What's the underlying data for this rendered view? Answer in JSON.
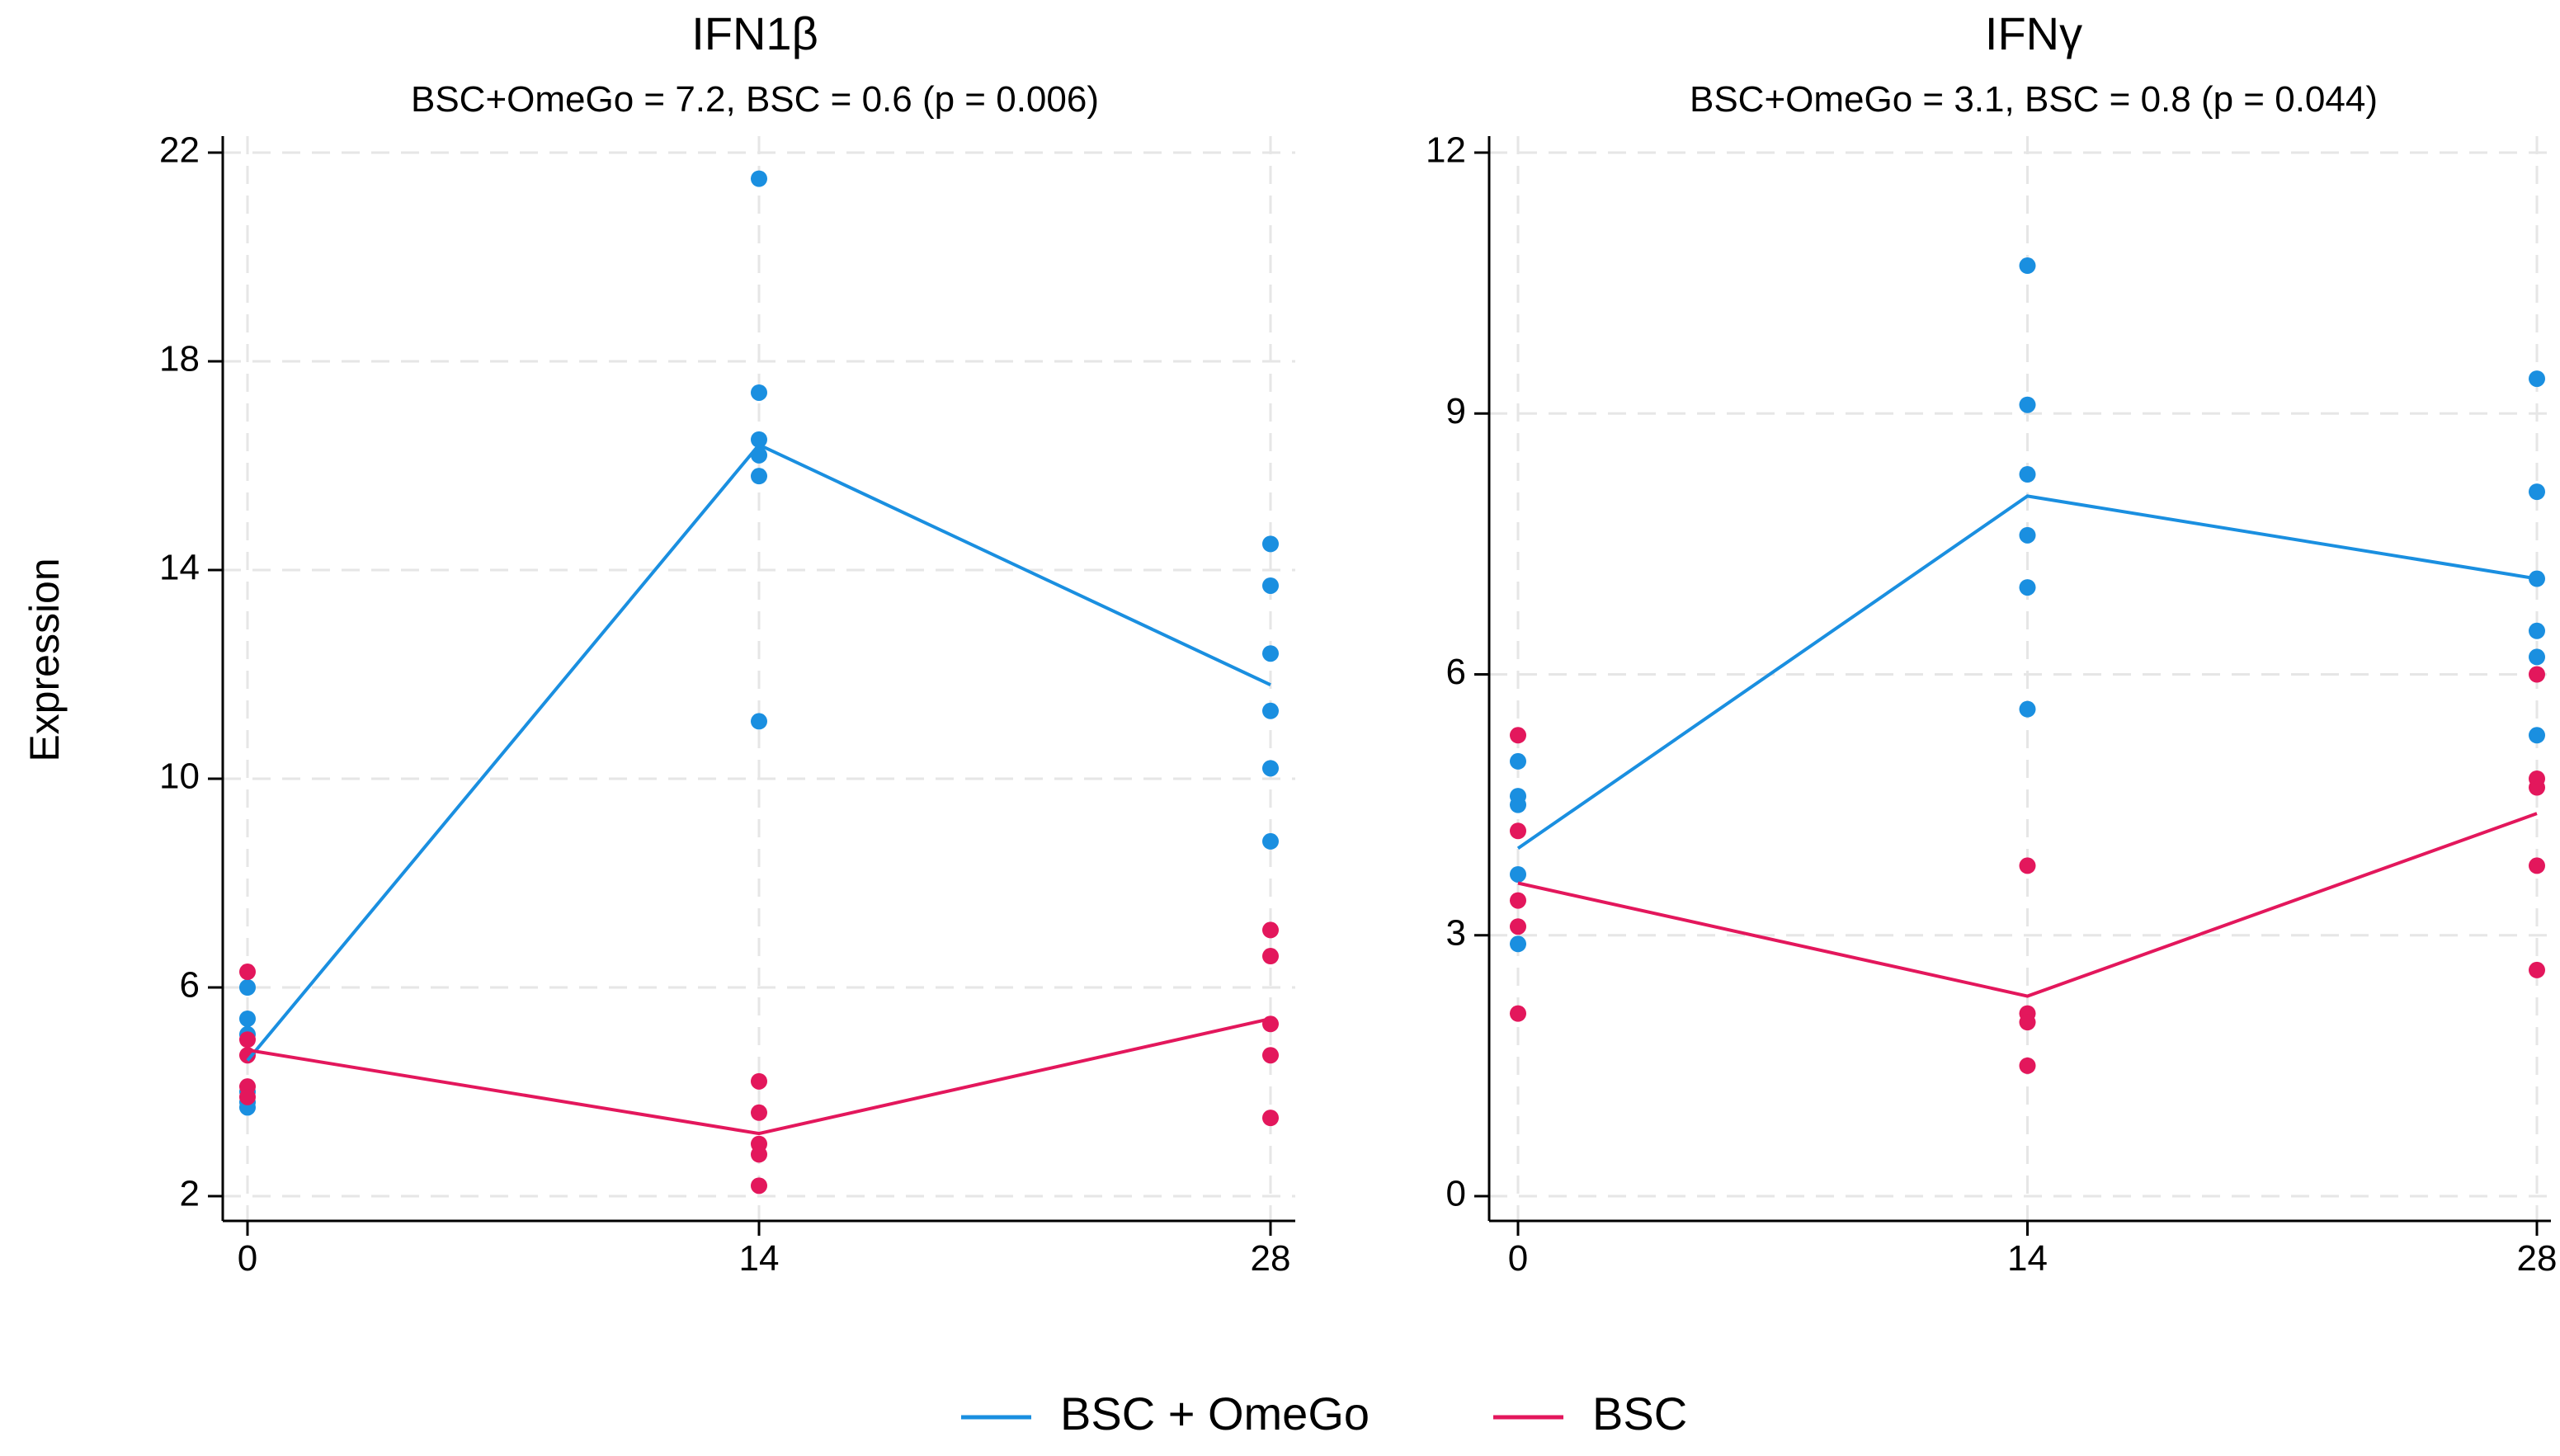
{
  "figure": {
    "ylabel": "Expression",
    "legend": [
      {
        "label": "BSC + OmeGo",
        "color": "#1a8fe0"
      },
      {
        "label": "BSC",
        "color": "#e3175c"
      }
    ]
  },
  "chart_data": [
    {
      "type": "line",
      "title": "IFN1β",
      "subtitle": "BSC+OmeGo = 7.2,  BSC = 0.6 (p = 0.006)",
      "xlabel": "",
      "ylabel": "Expression",
      "x_ticks": [
        0,
        14,
        28
      ],
      "y_ticks": [
        2,
        6,
        10,
        14,
        18,
        22
      ],
      "xlim": [
        0,
        28
      ],
      "ylim": [
        2,
        22
      ],
      "grid": true,
      "series": [
        {
          "name": "BSC + OmeGo",
          "color": "#1a8fe0",
          "x": [
            0,
            14,
            28
          ],
          "mean": [
            4.6,
            16.4,
            11.8
          ],
          "points": [
            {
              "x": 0,
              "y": 6.0
            },
            {
              "x": 0,
              "y": 5.4
            },
            {
              "x": 0,
              "y": 5.1
            },
            {
              "x": 0,
              "y": 4.0
            },
            {
              "x": 0,
              "y": 3.8
            },
            {
              "x": 0,
              "y": 3.7
            },
            {
              "x": 14,
              "y": 21.5
            },
            {
              "x": 14,
              "y": 17.4
            },
            {
              "x": 14,
              "y": 16.5
            },
            {
              "x": 14,
              "y": 16.2
            },
            {
              "x": 14,
              "y": 15.8
            },
            {
              "x": 14,
              "y": 11.1
            },
            {
              "x": 28,
              "y": 14.5
            },
            {
              "x": 28,
              "y": 13.7
            },
            {
              "x": 28,
              "y": 12.4
            },
            {
              "x": 28,
              "y": 11.3
            },
            {
              "x": 28,
              "y": 10.2
            },
            {
              "x": 28,
              "y": 8.8
            }
          ]
        },
        {
          "name": "BSC",
          "color": "#e3175c",
          "x": [
            0,
            14,
            28
          ],
          "mean": [
            4.8,
            3.2,
            5.4
          ],
          "points": [
            {
              "x": 0,
              "y": 6.3
            },
            {
              "x": 0,
              "y": 5.0
            },
            {
              "x": 0,
              "y": 4.7
            },
            {
              "x": 0,
              "y": 4.1
            },
            {
              "x": 0,
              "y": 3.9
            },
            {
              "x": 14,
              "y": 4.2
            },
            {
              "x": 14,
              "y": 3.6
            },
            {
              "x": 14,
              "y": 3.0
            },
            {
              "x": 14,
              "y": 2.8
            },
            {
              "x": 14,
              "y": 2.2
            },
            {
              "x": 28,
              "y": 7.1
            },
            {
              "x": 28,
              "y": 6.6
            },
            {
              "x": 28,
              "y": 5.3
            },
            {
              "x": 28,
              "y": 4.7
            },
            {
              "x": 28,
              "y": 3.5
            }
          ]
        }
      ]
    },
    {
      "type": "line",
      "title": "IFNγ",
      "subtitle": "BSC+OmeGo = 3.1,  BSC = 0.8 (p = 0.044)",
      "xlabel": "",
      "ylabel": "",
      "x_ticks": [
        0,
        14,
        28
      ],
      "y_ticks": [
        0,
        3,
        6,
        9,
        12
      ],
      "xlim": [
        0,
        28
      ],
      "ylim": [
        0,
        12
      ],
      "grid": true,
      "series": [
        {
          "name": "BSC + OmeGo",
          "color": "#1a8fe0",
          "x": [
            0,
            14,
            28
          ],
          "mean": [
            4.0,
            8.05,
            7.1
          ],
          "points": [
            {
              "x": 0,
              "y": 5.0
            },
            {
              "x": 0,
              "y": 4.6
            },
            {
              "x": 0,
              "y": 4.5
            },
            {
              "x": 0,
              "y": 3.7
            },
            {
              "x": 0,
              "y": 2.9
            },
            {
              "x": 14,
              "y": 10.7
            },
            {
              "x": 14,
              "y": 9.1
            },
            {
              "x": 14,
              "y": 8.3
            },
            {
              "x": 14,
              "y": 7.6
            },
            {
              "x": 14,
              "y": 7.0
            },
            {
              "x": 14,
              "y": 5.6
            },
            {
              "x": 28,
              "y": 9.4
            },
            {
              "x": 28,
              "y": 8.1
            },
            {
              "x": 28,
              "y": 7.1
            },
            {
              "x": 28,
              "y": 6.5
            },
            {
              "x": 28,
              "y": 6.2
            },
            {
              "x": 28,
              "y": 5.3
            }
          ]
        },
        {
          "name": "BSC",
          "color": "#e3175c",
          "x": [
            0,
            14,
            28
          ],
          "mean": [
            3.6,
            2.3,
            4.4
          ],
          "points": [
            {
              "x": 0,
              "y": 5.3
            },
            {
              "x": 0,
              "y": 4.2
            },
            {
              "x": 0,
              "y": 3.4
            },
            {
              "x": 0,
              "y": 3.1
            },
            {
              "x": 0,
              "y": 2.1
            },
            {
              "x": 14,
              "y": 3.8
            },
            {
              "x": 14,
              "y": 2.1
            },
            {
              "x": 14,
              "y": 2.0
            },
            {
              "x": 14,
              "y": 1.5
            },
            {
              "x": 28,
              "y": 6.0
            },
            {
              "x": 28,
              "y": 4.8
            },
            {
              "x": 28,
              "y": 4.7
            },
            {
              "x": 28,
              "y": 3.8
            },
            {
              "x": 28,
              "y": 2.6
            }
          ]
        }
      ]
    }
  ]
}
